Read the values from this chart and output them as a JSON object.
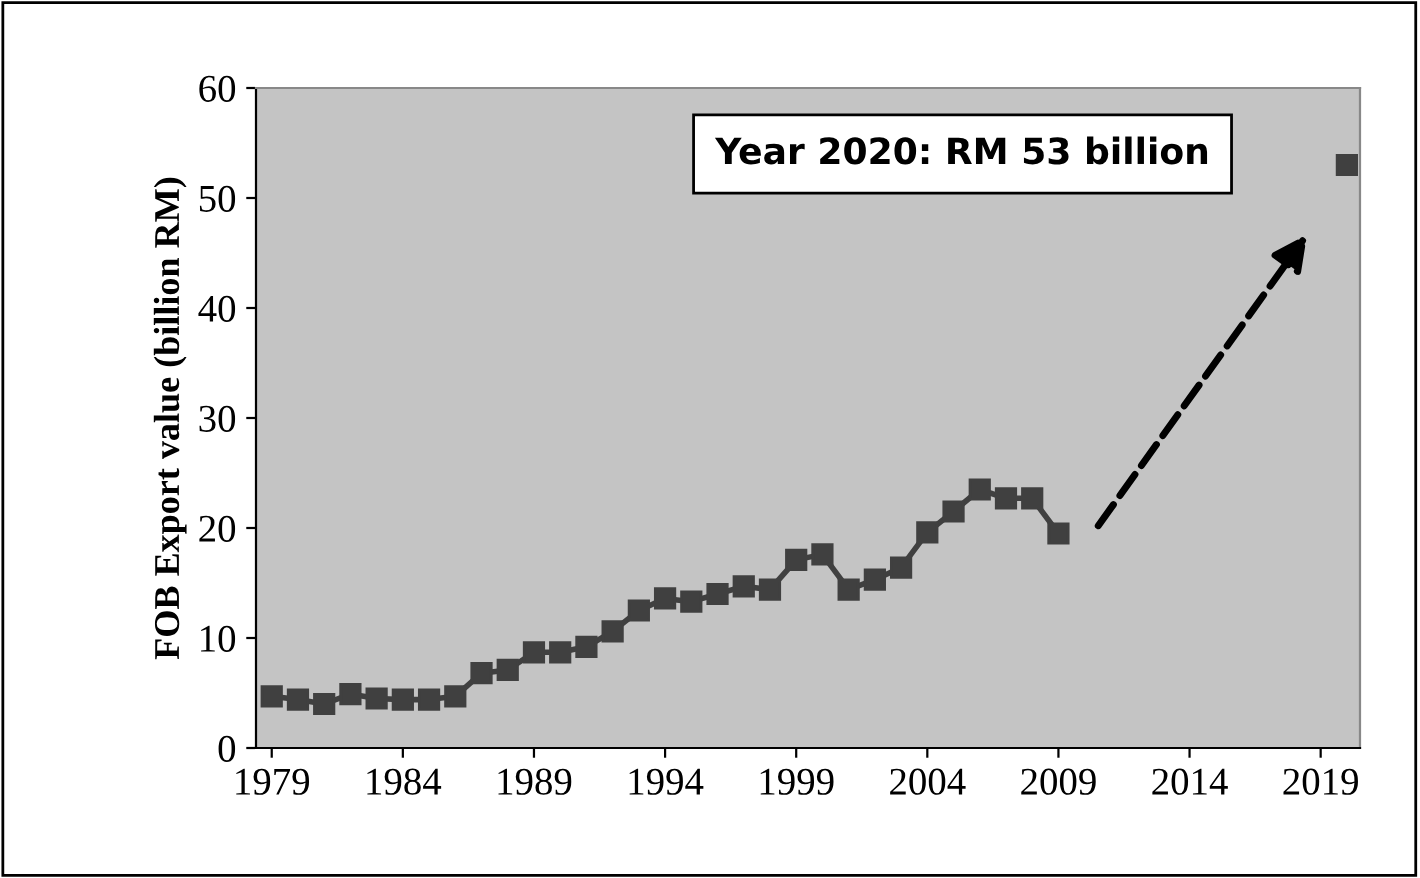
{
  "chart_data": {
    "type": "line",
    "ylabel": "FOB Export value (billion RM)",
    "x": [
      1979,
      1980,
      1981,
      1982,
      1983,
      1984,
      1985,
      1986,
      1987,
      1988,
      1989,
      1990,
      1991,
      1992,
      1993,
      1994,
      1995,
      1996,
      1997,
      1998,
      1999,
      2000,
      2001,
      2002,
      2003,
      2004,
      2005,
      2006,
      2007,
      2008,
      2009,
      2010,
      2011,
      2012,
      2013,
      2014,
      2015,
      2016,
      2017,
      2018,
      2019,
      2020
    ],
    "series": [
      {
        "color": "#404040",
        "values": [
          4.7,
          4.4,
          4.0,
          4.9,
          4.5,
          4.4,
          4.4,
          4.7,
          6.8,
          7.1,
          8.7,
          8.7,
          9.2,
          10.6,
          12.5,
          13.6,
          13.3,
          14.0,
          14.7,
          14.4,
          17.1,
          17.6,
          14.4,
          15.3,
          16.4,
          19.6,
          21.5,
          23.5,
          22.7,
          22.7,
          19.5,
          null,
          null,
          null,
          null,
          null,
          null,
          null,
          null,
          null,
          null,
          53
        ]
      }
    ],
    "xlim": [
      1978.4,
      2020.5
    ],
    "xticks": [
      1979,
      1984,
      1989,
      1994,
      1999,
      2004,
      2009,
      2014,
      2019
    ],
    "ylim": [
      0,
      60
    ],
    "yticks": [
      0,
      10,
      20,
      30,
      40,
      50,
      60
    ],
    "grid": false,
    "legend": false,
    "marker": "square",
    "line_style": "solid",
    "annotations": [
      "Year 2020: RM 53 billion"
    ]
  }
}
